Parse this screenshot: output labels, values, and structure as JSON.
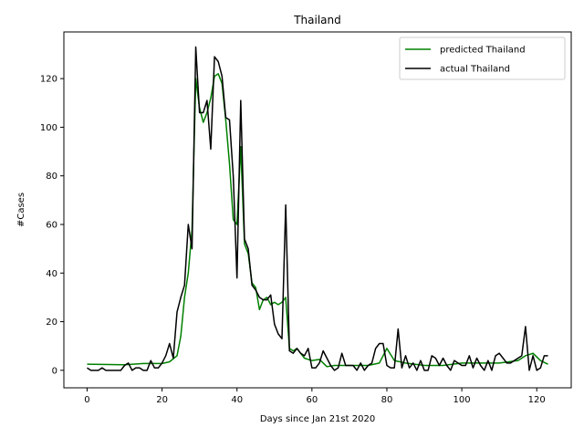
{
  "chart_data": {
    "type": "line",
    "title": "Thailand",
    "xlabel": "Days since Jan 21st 2020",
    "ylabel": "#Cases",
    "xlim": [
      -6.2,
      129.2
    ],
    "ylim": [
      -7.2,
      139.2
    ],
    "xticks": [
      0,
      20,
      40,
      60,
      80,
      100,
      120
    ],
    "yticks": [
      0,
      20,
      40,
      60,
      80,
      100,
      120
    ],
    "grid": false,
    "legend_position": "top-right",
    "series": [
      {
        "name": "predicted Thailand",
        "color": "#008000",
        "x": [
          0,
          10,
          15,
          20,
          22,
          24,
          25,
          26,
          27,
          28,
          29,
          30,
          31,
          32,
          33,
          34,
          35,
          36,
          37,
          38,
          39,
          40,
          41,
          42,
          43,
          44,
          45,
          46,
          47,
          48,
          49,
          50,
          51,
          52,
          53,
          54,
          55,
          56,
          57,
          58,
          60,
          62,
          64,
          66,
          70,
          75,
          78,
          80,
          82,
          85,
          90,
          95,
          100,
          105,
          110,
          115,
          117,
          119,
          121,
          123
        ],
        "y": [
          2.5,
          2.3,
          2.8,
          2.8,
          3.5,
          6,
          14,
          30,
          40,
          58,
          120,
          108,
          102,
          106,
          112,
          121,
          122,
          118,
          103,
          85,
          62,
          60,
          92,
          52,
          48,
          36,
          34,
          25,
          29,
          30,
          27,
          28,
          27,
          28,
          30,
          9,
          8,
          9,
          7,
          5,
          4,
          4.5,
          1.5,
          2,
          2,
          2,
          3,
          9,
          4,
          3,
          2,
          2,
          3,
          3,
          3,
          4,
          6,
          7,
          4,
          2.5
        ]
      },
      {
        "name": "actual Thailand",
        "color": "#000000",
        "x": [
          0,
          1,
          2,
          3,
          4,
          5,
          6,
          7,
          8,
          9,
          10,
          11,
          12,
          13,
          14,
          15,
          16,
          17,
          18,
          19,
          20,
          21,
          22,
          23,
          24,
          25,
          26,
          27,
          28,
          29,
          30,
          31,
          32,
          33,
          34,
          35,
          36,
          37,
          38,
          39,
          40,
          41,
          42,
          43,
          44,
          45,
          46,
          47,
          48,
          49,
          50,
          51,
          52,
          53,
          54,
          55,
          56,
          57,
          58,
          59,
          60,
          61,
          62,
          63,
          64,
          65,
          66,
          67,
          68,
          69,
          70,
          71,
          72,
          73,
          74,
          75,
          76,
          77,
          78,
          79,
          80,
          81,
          82,
          83,
          84,
          85,
          86,
          87,
          88,
          89,
          90,
          91,
          92,
          93,
          94,
          95,
          96,
          97,
          98,
          99,
          100,
          101,
          102,
          103,
          104,
          105,
          106,
          107,
          108,
          109,
          110,
          111,
          112,
          113,
          114,
          115,
          116,
          117,
          118,
          119,
          120,
          121,
          122,
          123
        ],
        "y": [
          1,
          0,
          0,
          0,
          1,
          0,
          0,
          0,
          0,
          0,
          2,
          3,
          0,
          1,
          1,
          0,
          0,
          4,
          1,
          1,
          3,
          6,
          11,
          5,
          24,
          30,
          35,
          60,
          50,
          133,
          106,
          106,
          111,
          91,
          129,
          127,
          121,
          104,
          103,
          80,
          38,
          111,
          54,
          50,
          35,
          33,
          30,
          29,
          29,
          31,
          19,
          15,
          13,
          68,
          8,
          7,
          9,
          7,
          6,
          9,
          1,
          1,
          3,
          8,
          5,
          2,
          0,
          1,
          7,
          2,
          2,
          2,
          0,
          3,
          0,
          2,
          3,
          9,
          11,
          11,
          2,
          1,
          1,
          17,
          1,
          6,
          1,
          3,
          0,
          4,
          0,
          0,
          6,
          5,
          2,
          5,
          2,
          0,
          4,
          3,
          2,
          2,
          6,
          1,
          5,
          2,
          0,
          4,
          0,
          6,
          7,
          5,
          3,
          3,
          4,
          5,
          6,
          18,
          0,
          6,
          0,
          1,
          6,
          6
        ]
      }
    ]
  }
}
